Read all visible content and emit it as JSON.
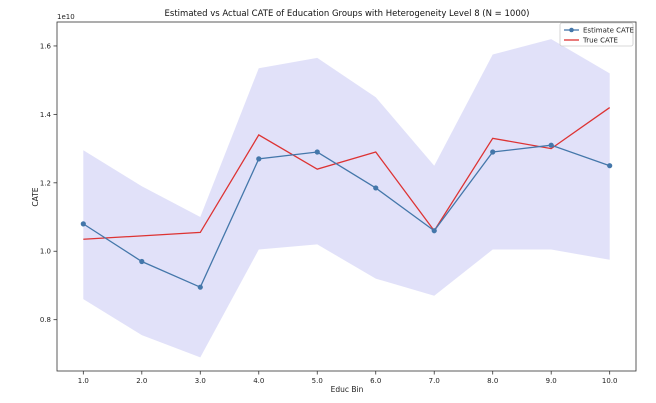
{
  "chart_data": {
    "type": "line",
    "title": "Estimated vs Actual CATE of Education Groups with Heterogeneity Level 8 (N = 1000)",
    "xlabel": "Educ Bin",
    "ylabel": "CATE",
    "y_offset_label": "1e10",
    "xlim": [
      0.55,
      10.45
    ],
    "ylim": [
      0.65,
      1.67
    ],
    "x_ticks": [
      "1.0",
      "2.0",
      "3.0",
      "4.0",
      "5.0",
      "6.0",
      "7.0",
      "8.0",
      "9.0",
      "10.0"
    ],
    "y_ticks": [
      "0.8",
      "1.0",
      "1.2",
      "1.4",
      "1.6"
    ],
    "x": [
      1,
      2,
      3,
      4,
      5,
      6,
      7,
      8,
      9,
      10
    ],
    "series": [
      {
        "name": "Estimate CATE",
        "color": "#4477aa",
        "marker": "circle",
        "values": [
          1.08,
          0.97,
          0.895,
          1.27,
          1.29,
          1.185,
          1.06,
          1.29,
          1.31,
          1.25
        ]
      },
      {
        "name": "True CATE",
        "color": "#dd3333",
        "marker": "none",
        "values": [
          1.035,
          1.045,
          1.055,
          1.34,
          1.24,
          1.29,
          1.06,
          1.33,
          1.3,
          1.42
        ]
      }
    ],
    "band": {
      "color": "#dcdcf8",
      "lower": [
        0.86,
        0.755,
        0.69,
        1.005,
        1.02,
        0.92,
        0.87,
        1.005,
        1.005,
        0.975
      ],
      "upper": [
        1.295,
        1.19,
        1.1,
        1.535,
        1.565,
        1.45,
        1.25,
        1.575,
        1.62,
        1.52
      ]
    },
    "legend_position": "top-right",
    "grid": false
  }
}
